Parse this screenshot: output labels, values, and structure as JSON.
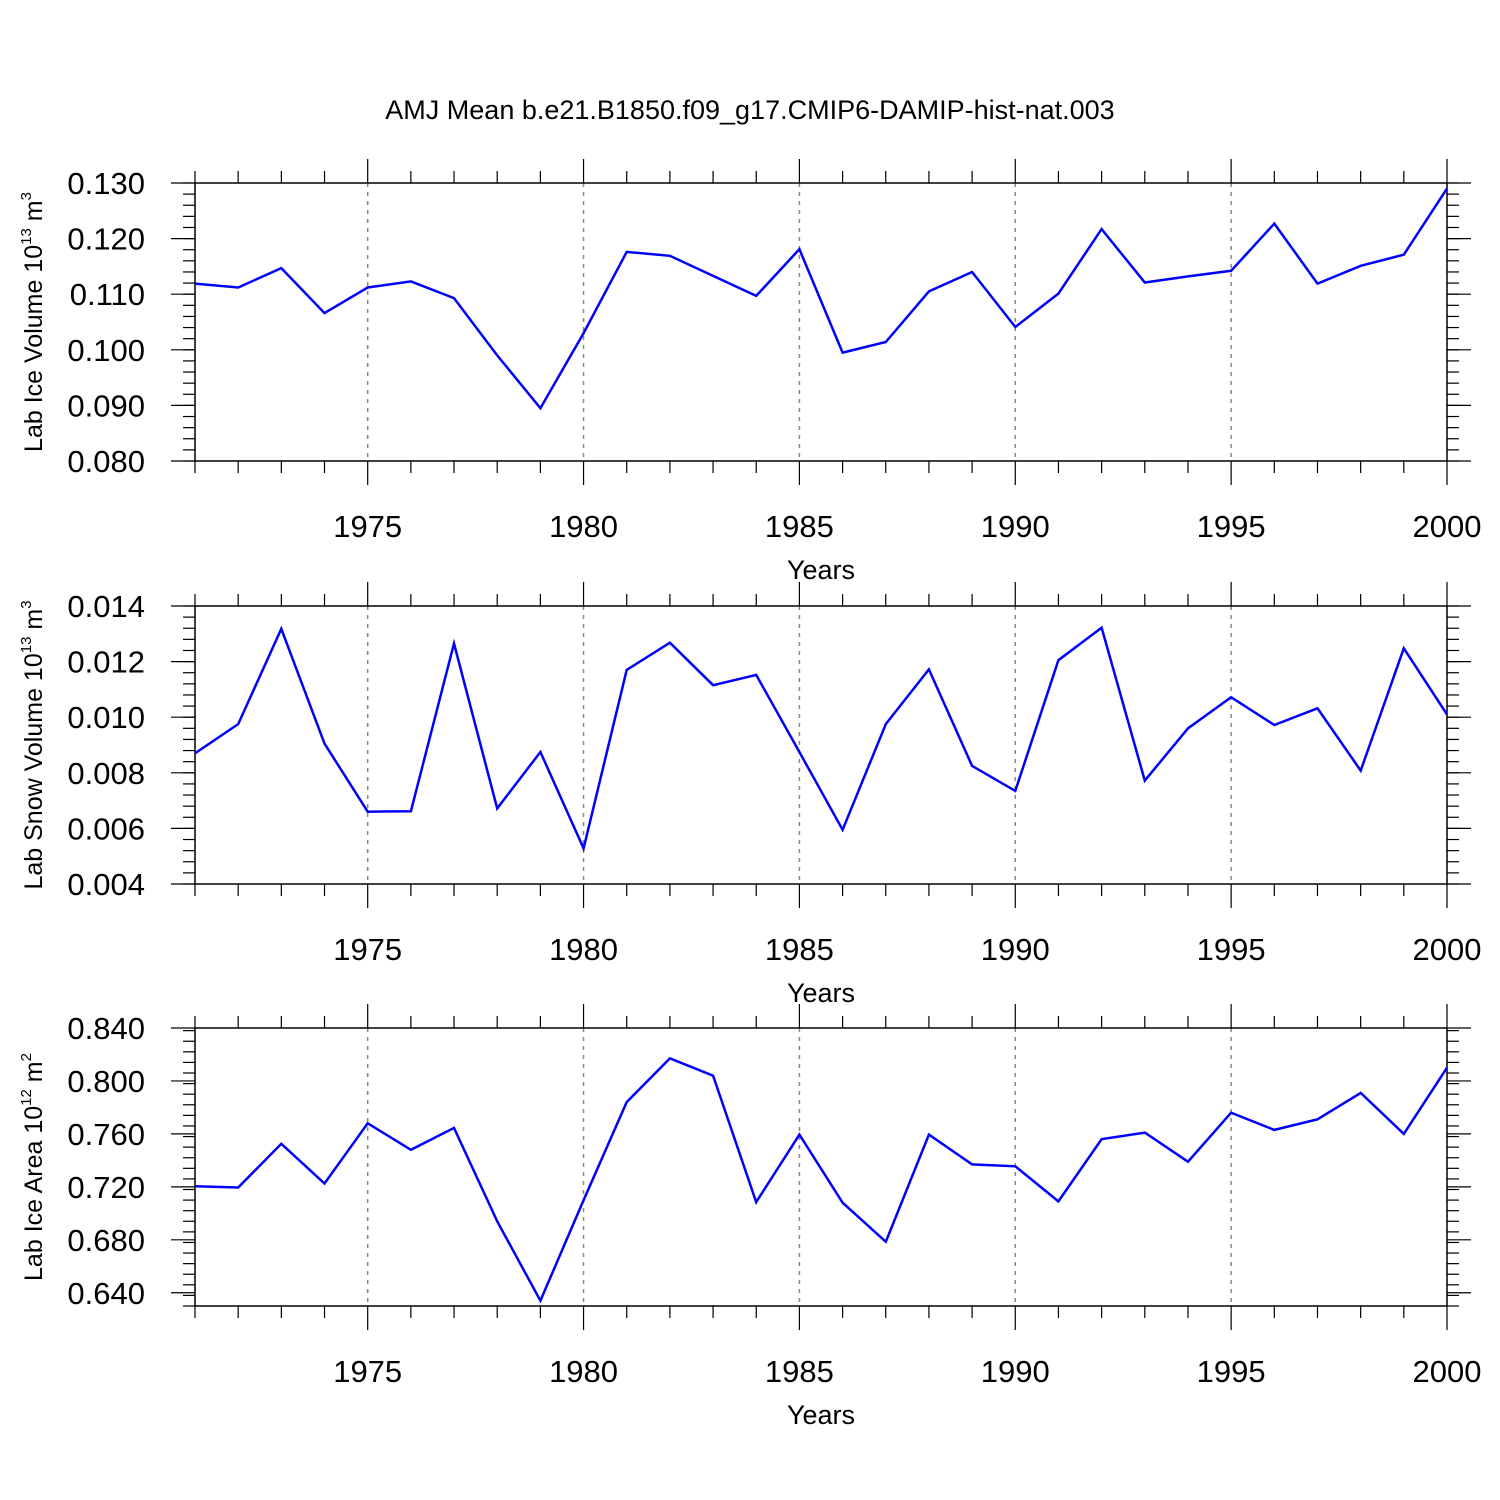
{
  "title": "AMJ Mean b.e21.B1850.f09_g17.CMIP6-DAMIP-hist-nat.003",
  "line_color": "#0000ff",
  "grid": "vertical dashed at major x ticks",
  "chart_data": [
    {
      "type": "line",
      "ylabel": {
        "text": "Lab Ice Volume 10",
        "sup": "13",
        "unit": " m",
        "unit_sup": "3"
      },
      "xlabel": "Years",
      "xlim": [
        1971,
        2000
      ],
      "ylim": [
        0.08,
        0.13
      ],
      "yticks": [
        "0.080",
        "0.090",
        "0.100",
        "0.110",
        "0.120",
        "0.130"
      ],
      "xticks": [
        "1975",
        "1980",
        "1985",
        "1990",
        "1995",
        "2000"
      ],
      "x": [
        1971,
        1972,
        1973,
        1974,
        1975,
        1976,
        1977,
        1978,
        1979,
        1980,
        1981,
        1982,
        1983,
        1984,
        1985,
        1986,
        1987,
        1988,
        1989,
        1990,
        1991,
        1992,
        1993,
        1994,
        1995,
        1996,
        1997,
        1998,
        1999,
        2000
      ],
      "values": [
        0.1119,
        0.1112,
        0.1147,
        0.1066,
        0.1112,
        0.1123,
        0.1093,
        0.099,
        0.0895,
        0.103,
        0.1176,
        0.1169,
        0.1133,
        0.1097,
        0.1181,
        0.0995,
        0.1014,
        0.1105,
        0.114,
        0.1041,
        0.1101,
        0.1217,
        0.1121,
        0.1132,
        0.1142,
        0.1227,
        0.1119,
        0.1151,
        0.1171,
        0.129
      ]
    },
    {
      "type": "line",
      "ylabel": {
        "text": "Lab Snow Volume 10",
        "sup": "13",
        "unit": " m",
        "unit_sup": "3"
      },
      "xlabel": "Years",
      "xlim": [
        1971,
        2000
      ],
      "ylim": [
        0.004,
        0.014
      ],
      "yticks": [
        "0.004",
        "0.006",
        "0.008",
        "0.010",
        "0.012",
        "0.014"
      ],
      "xticks": [
        "1975",
        "1980",
        "1985",
        "1990",
        "1995",
        "2000"
      ],
      "x": [
        1971,
        1972,
        1973,
        1974,
        1975,
        1976,
        1977,
        1978,
        1979,
        1980,
        1981,
        1982,
        1983,
        1984,
        1985,
        1986,
        1987,
        1988,
        1989,
        1990,
        1991,
        1992,
        1993,
        1994,
        1995,
        1996,
        1997,
        1998,
        1999,
        2000
      ],
      "values": [
        0.0087,
        0.00975,
        0.01318,
        0.00905,
        0.0066,
        0.00662,
        0.01265,
        0.00672,
        0.00875,
        0.00528,
        0.0117,
        0.01268,
        0.01115,
        0.01152,
        0.00875,
        0.00595,
        0.00975,
        0.01172,
        0.00825,
        0.00735,
        0.01205,
        0.01322,
        0.00772,
        0.0096,
        0.01072,
        0.00972,
        0.01032,
        0.00808,
        0.01248,
        0.0101
      ]
    },
    {
      "type": "line",
      "ylabel": {
        "text": "Lab Ice Area 10",
        "sup": "12",
        "unit": " m",
        "unit_sup": "2"
      },
      "xlabel": "Years",
      "xlim": [
        1971,
        2000
      ],
      "ylim": [
        0.63,
        0.84
      ],
      "yticks": [
        "0.640",
        "0.680",
        "0.720",
        "0.760",
        "0.800",
        "0.840"
      ],
      "ytick_values": [
        0.64,
        0.68,
        0.72,
        0.76,
        0.8,
        0.84
      ],
      "xticks": [
        "1975",
        "1980",
        "1985",
        "1990",
        "1995",
        "2000"
      ],
      "x": [
        1971,
        1972,
        1973,
        1974,
        1975,
        1976,
        1977,
        1978,
        1979,
        1980,
        1981,
        1982,
        1983,
        1984,
        1985,
        1986,
        1987,
        1988,
        1989,
        1990,
        1991,
        1992,
        1993,
        1994,
        1995,
        1996,
        1997,
        1998,
        1999,
        2000
      ],
      "values": [
        0.7205,
        0.7195,
        0.7525,
        0.7225,
        0.768,
        0.748,
        0.7645,
        0.694,
        0.634,
        0.71,
        0.784,
        0.817,
        0.804,
        0.7085,
        0.7595,
        0.708,
        0.6785,
        0.7595,
        0.737,
        0.7355,
        0.709,
        0.756,
        0.761,
        0.739,
        0.776,
        0.763,
        0.771,
        0.791,
        0.76,
        0.81
      ]
    }
  ]
}
